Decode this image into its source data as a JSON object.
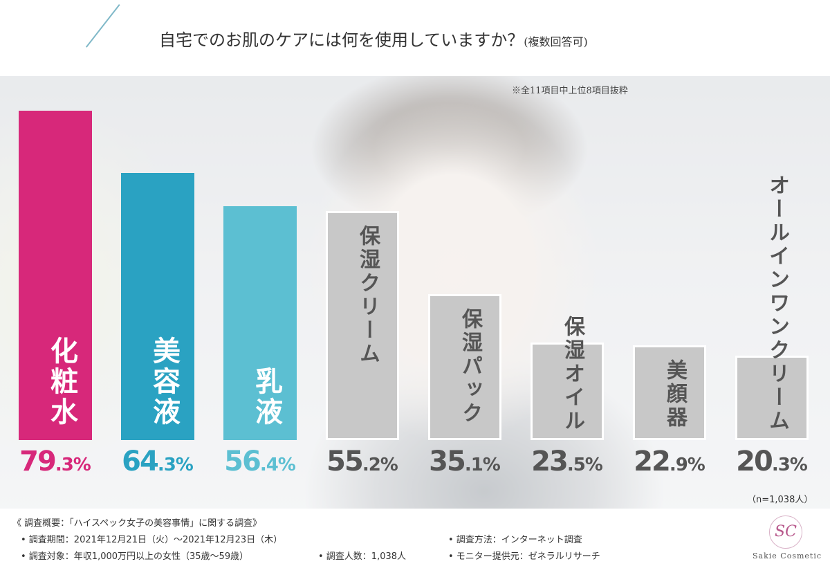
{
  "title": "自宅でのお肌のケアには何を使用していますか？",
  "title_suffix": "(複数回答可)",
  "note": "※全11項目中上位8項目抜粋",
  "sample_note": "（n=1,038人）",
  "colors": {
    "magenta": "#d7287a",
    "teal": "#2aa2c2",
    "aqua": "#5cbfd2",
    "gray": "#c8c8c8"
  },
  "chart_data": {
    "type": "bar",
    "categories": [
      "化粧水",
      "美容液",
      "乳液",
      "保湿クリーム",
      "保湿パック",
      "保湿オイル",
      "美顔器",
      "オールインワンクリーム"
    ],
    "values": [
      79.3,
      64.3,
      56.4,
      55.2,
      35.1,
      23.5,
      22.9,
      20.3
    ],
    "labels": [
      "79.3%",
      "64.3%",
      "56.4%",
      "55.2%",
      "35.1%",
      "23.5%",
      "22.9%",
      "20.3%"
    ],
    "unit": "%",
    "highlight_colors": [
      "#d7287a",
      "#2aa2c2",
      "#5cbfd2"
    ]
  },
  "footer": {
    "heading": "《 調査概要：「ハイスペック女子の美容事情」に関する調査》",
    "period": "• 調査期間：2021年12月21日（火）～2021年12月23日（木）",
    "target": "• 調査対象：年収1,000万円以上の女性（35歳～59歳）",
    "count": "• 調査人数：1,038人",
    "method": "• 調査方法：インターネット調査",
    "provider": "• モニター提供元：ゼネラルリサーチ"
  },
  "logo": {
    "mark": "SC",
    "text": "Sakie Cosmetic"
  }
}
